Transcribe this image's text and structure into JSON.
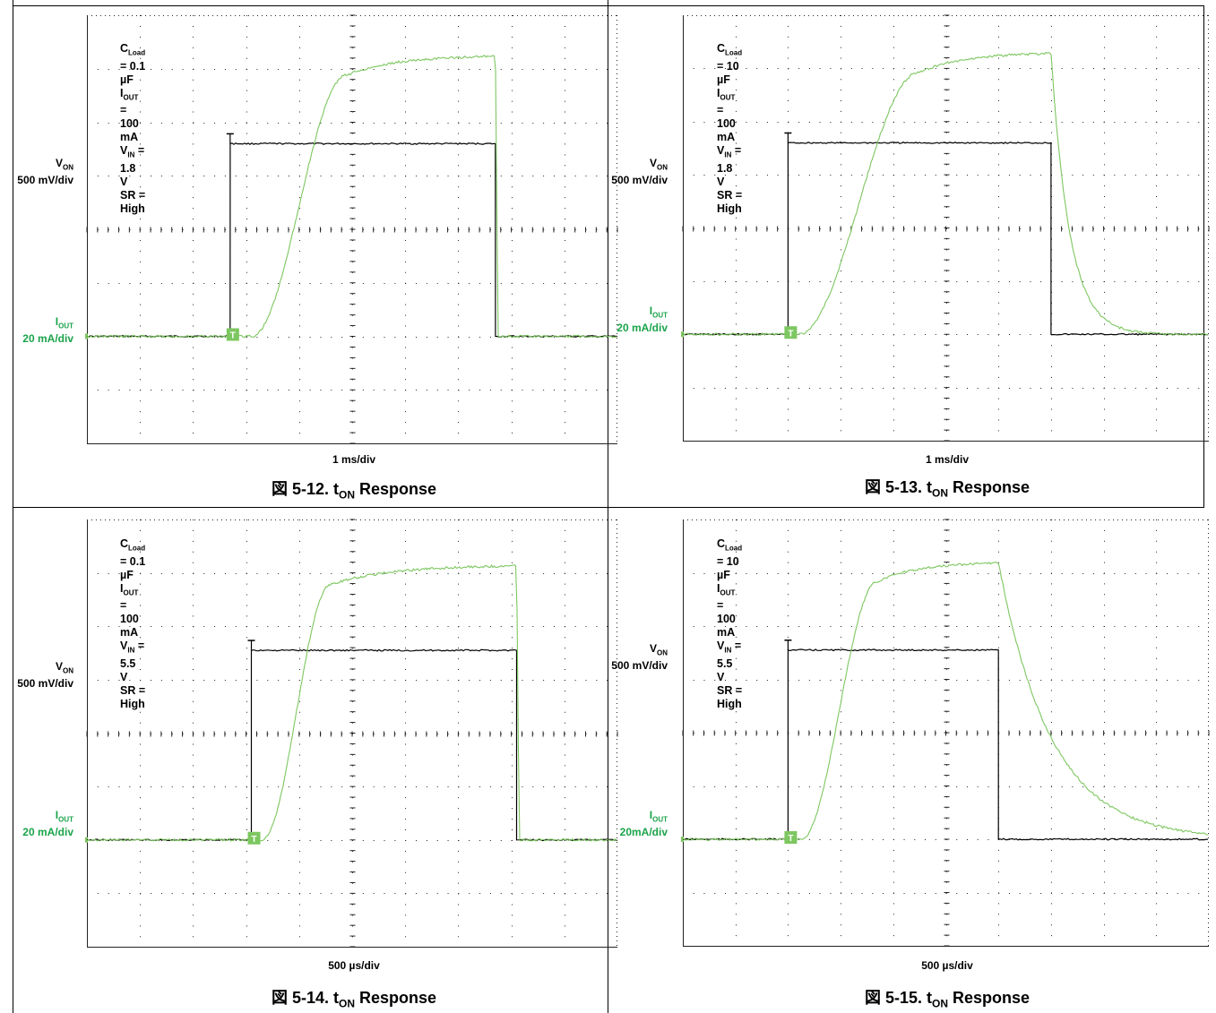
{
  "charts": [
    {
      "id": "fig-5-12",
      "caption": {
        "prefix": "図 5-12. t",
        "sub": "ON",
        "suffix": " Response"
      },
      "time_div": "1 ms/div",
      "von_label": {
        "sym": "V",
        "sub": "ON",
        "scale": "500 mV/div"
      },
      "iout_label": {
        "sym": "I",
        "sub": "OUT",
        "scale": "20 mA/div"
      },
      "conditions": [
        {
          "a": "C",
          "s": "Load",
          "b": " = 0.1 µF"
        },
        {
          "a": "I",
          "s": "OUT",
          "b": " = 100 mA"
        },
        {
          "a": "V",
          "s": "IN",
          "b": " = 1.8 V"
        },
        {
          "a": "SR = High",
          "s": "",
          "b": ""
        }
      ]
    },
    {
      "id": "fig-5-13",
      "caption": {
        "prefix": "図 5-13. t",
        "sub": "ON",
        "suffix": " Response"
      },
      "time_div": "1 ms/div",
      "von_label": {
        "sym": "V",
        "sub": "ON",
        "scale": "500 mV/div"
      },
      "iout_label": {
        "sym": "I",
        "sub": "OUT",
        "scale": "20 mA/div"
      },
      "conditions": [
        {
          "a": "C",
          "s": "Load",
          "b": " = 10 µF"
        },
        {
          "a": "I",
          "s": "OUT",
          "b": " = 100 mA"
        },
        {
          "a": "V",
          "s": "IN",
          "b": " = 1.8 V"
        },
        {
          "a": "SR = High",
          "s": "",
          "b": ""
        }
      ]
    },
    {
      "id": "fig-5-14",
      "caption": {
        "prefix": "図 5-14. t",
        "sub": "ON",
        "suffix": " Response"
      },
      "time_div": "500 µs/div",
      "von_label": {
        "sym": "V",
        "sub": "ON",
        "scale": "500 mV/div"
      },
      "iout_label": {
        "sym": "I",
        "sub": "OUT",
        "scale": "20 mA/div"
      },
      "conditions": [
        {
          "a": "C",
          "s": "Load",
          "b": " = 0.1 µF"
        },
        {
          "a": "I",
          "s": "OUT",
          "b": " = 100 mA"
        },
        {
          "a": "V",
          "s": "IN",
          "b": " = 5.5 V"
        },
        {
          "a": "SR = High",
          "s": "",
          "b": ""
        }
      ]
    },
    {
      "id": "fig-5-15",
      "caption": {
        "prefix": "図 5-15. t",
        "sub": "ON",
        "suffix": " Response"
      },
      "time_div": "500 µs/div",
      "von_label": {
        "sym": "V",
        "sub": "ON",
        "scale": "500 mV/div"
      },
      "iout_label": {
        "sym": "I",
        "sub": "OUT",
        "scale": "20mA/div"
      },
      "conditions": [
        {
          "a": "C",
          "s": "Load",
          "b": " = 10 µF"
        },
        {
          "a": "I",
          "s": "OUT",
          "b": " = 100 mA"
        },
        {
          "a": "V",
          "s": "IN",
          "b": " = 5.5 V"
        },
        {
          "a": "SR = High",
          "s": "",
          "b": ""
        }
      ]
    }
  ],
  "colors": {
    "von": "#000000",
    "iout": "#7dc760",
    "iout_label": "#1aa34a",
    "grid": "#222222"
  },
  "chart_data": [
    {
      "type": "line",
      "title": "図 5-12. tON Response",
      "xlabel": "1 ms/div",
      "x_divisions": 10,
      "y_divisions": 8,
      "series": [
        {
          "name": "VON",
          "unit": "500 mV/div",
          "level_div": [
            0,
            0,
            3.6,
            3.6,
            0,
            0
          ],
          "time_div": [
            0,
            2.7,
            2.7,
            7.7,
            7.75,
            10
          ]
        },
        {
          "name": "IOUT",
          "unit": "20 mA/div",
          "rise_start_div": 3.1,
          "rise_end_div": 4.9,
          "fall_div": 7.7,
          "peak_div": 5.25,
          "final_div": 5.2
        }
      ]
    },
    {
      "type": "line",
      "title": "図 5-13. tON Response",
      "xlabel": "1 ms/div",
      "x_divisions": 10,
      "y_divisions": 8,
      "series": [
        {
          "name": "VON",
          "unit": "500 mV/div",
          "level_div": [
            0,
            0,
            3.6,
            3.6,
            0,
            0
          ],
          "time_div": [
            0,
            2.0,
            2.0,
            7.0,
            7.05,
            10
          ]
        },
        {
          "name": "IOUT",
          "unit": "20 mA/div",
          "rise_start_div": 2.2,
          "rise_end_div": 4.5,
          "fall_div": 7.0,
          "peak_div": 5.3,
          "tau_fall_div": 0.35
        }
      ]
    },
    {
      "type": "line",
      "title": "図 5-14. tON Response",
      "xlabel": "500 µs/div",
      "x_divisions": 10,
      "y_divisions": 8,
      "series": [
        {
          "name": "VON",
          "unit": "500 mV/div",
          "level_div": [
            0,
            0,
            3.55,
            3.55,
            0,
            0
          ],
          "time_div": [
            0,
            3.1,
            3.1,
            8.1,
            8.15,
            10
          ]
        },
        {
          "name": "IOUT",
          "unit": "20 mA/div",
          "rise_start_div": 3.3,
          "rise_end_div": 4.6,
          "fall_div": 8.1,
          "peak_div": 5.15
        }
      ]
    },
    {
      "type": "line",
      "title": "図 5-15. tON Response",
      "xlabel": "500 µs/div",
      "x_divisions": 10,
      "y_divisions": 8,
      "series": [
        {
          "name": "VON",
          "unit": "500 mV/div",
          "level_div": [
            0,
            0,
            3.55,
            3.55,
            0,
            0
          ],
          "time_div": [
            0,
            2.0,
            2.0,
            6.0,
            6.05,
            10
          ]
        },
        {
          "name": "IOUT",
          "unit": "20 mA/div",
          "rise_start_div": 2.25,
          "rise_end_div": 3.7,
          "fall_div": 6.0,
          "peak_div": 5.2,
          "tau_fall_div": 1.0
        }
      ]
    }
  ]
}
